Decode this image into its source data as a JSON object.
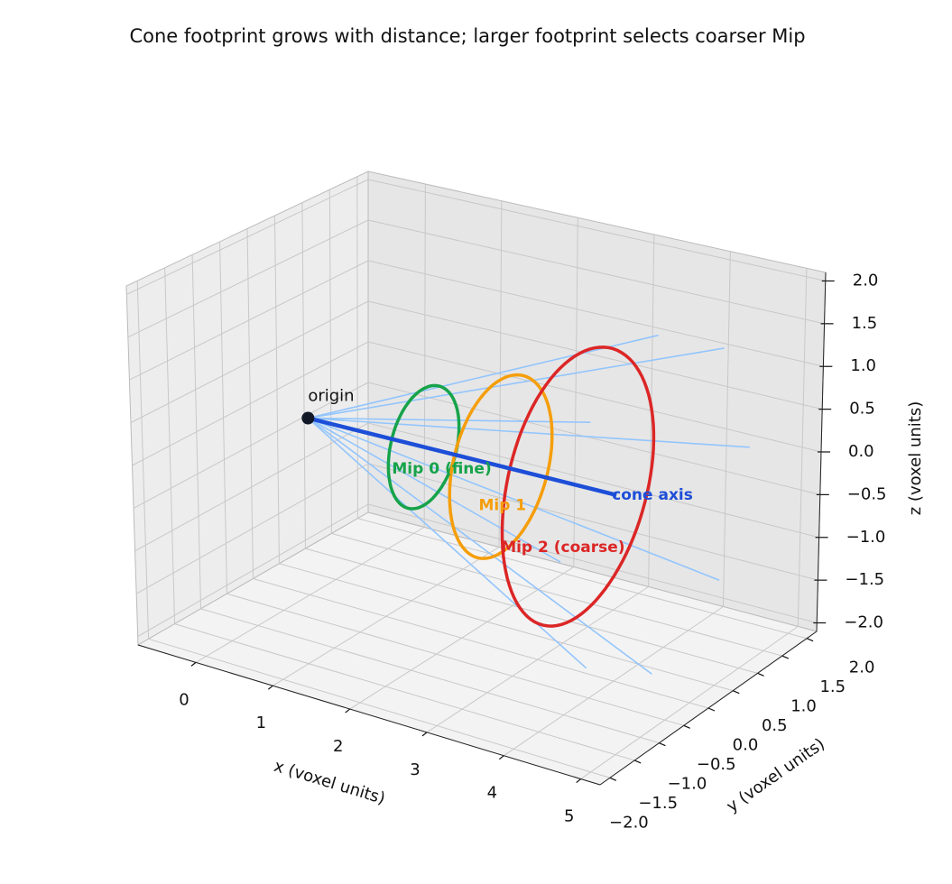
{
  "chart_data": {
    "type": "line3d",
    "title": "Cone footprint grows with distance; larger footprint selects coarser Mip",
    "xlabel": "x (voxel units)",
    "ylabel": "y (voxel units)",
    "zlabel": "z (voxel units)",
    "xlim": [
      -0.75,
      5.25
    ],
    "ylim": [
      -2.2,
      2.2
    ],
    "zlim": [
      -2.1,
      2.1
    ],
    "xticks": [
      0,
      1,
      2,
      3,
      4,
      5
    ],
    "yticks": [
      {
        "value": -2.0,
        "label": "−2.0"
      },
      {
        "value": -1.5,
        "label": "−1.5"
      },
      {
        "value": -1.0,
        "label": "−1.0"
      },
      {
        "value": -0.5,
        "label": "−0.5"
      },
      {
        "value": 0.0,
        "label": "0.0"
      },
      0.5,
      {
        "value": 1.0,
        "label": "1.0"
      },
      1.5,
      {
        "value": 2.0,
        "label": "2.0"
      }
    ],
    "zticks": [
      {
        "value": -2.0,
        "label": "−2.0"
      },
      {
        "value": -1.5,
        "label": "−1.5"
      },
      {
        "value": -1.0,
        "label": "−1.0"
      },
      {
        "value": -0.5,
        "label": "−0.5"
      },
      {
        "value": 0.0,
        "label": "0.0"
      },
      0.5,
      {
        "value": 1.0,
        "label": "1.0"
      },
      1.5,
      {
        "value": 2.0,
        "label": "2.0"
      }
    ],
    "grid": true,
    "origin": {
      "label": "origin",
      "point": [
        0,
        0,
        0
      ],
      "color": "#111827"
    },
    "axis": {
      "label": "cone axis",
      "color": "#1d4ed8",
      "points": [
        [
          0,
          0,
          0
        ],
        [
          4,
          0,
          0
        ]
      ]
    },
    "rays": {
      "color": "#93c5fd",
      "ends": [
        [
          4.5,
          1.9,
          0
        ],
        [
          4.5,
          1.34,
          1.34
        ],
        [
          4.5,
          0,
          1.9
        ],
        [
          4.5,
          -1.34,
          1.34
        ],
        [
          4.5,
          -1.9,
          0
        ],
        [
          4.5,
          -1.34,
          -1.34
        ],
        [
          4.5,
          0,
          -1.9
        ],
        [
          4.5,
          1.34,
          -1.34
        ]
      ]
    },
    "rings": [
      {
        "name": "Mip 0 (fine)",
        "color": "#16a34a",
        "distance": 1.5,
        "radius": 0.68
      },
      {
        "name": "Mip 1",
        "color": "#f59e0b",
        "distance": 2.5,
        "radius": 1.0
      },
      {
        "name": "Mip 2 (coarse)",
        "color": "#dc2626",
        "distance": 3.5,
        "radius": 1.5
      }
    ]
  }
}
